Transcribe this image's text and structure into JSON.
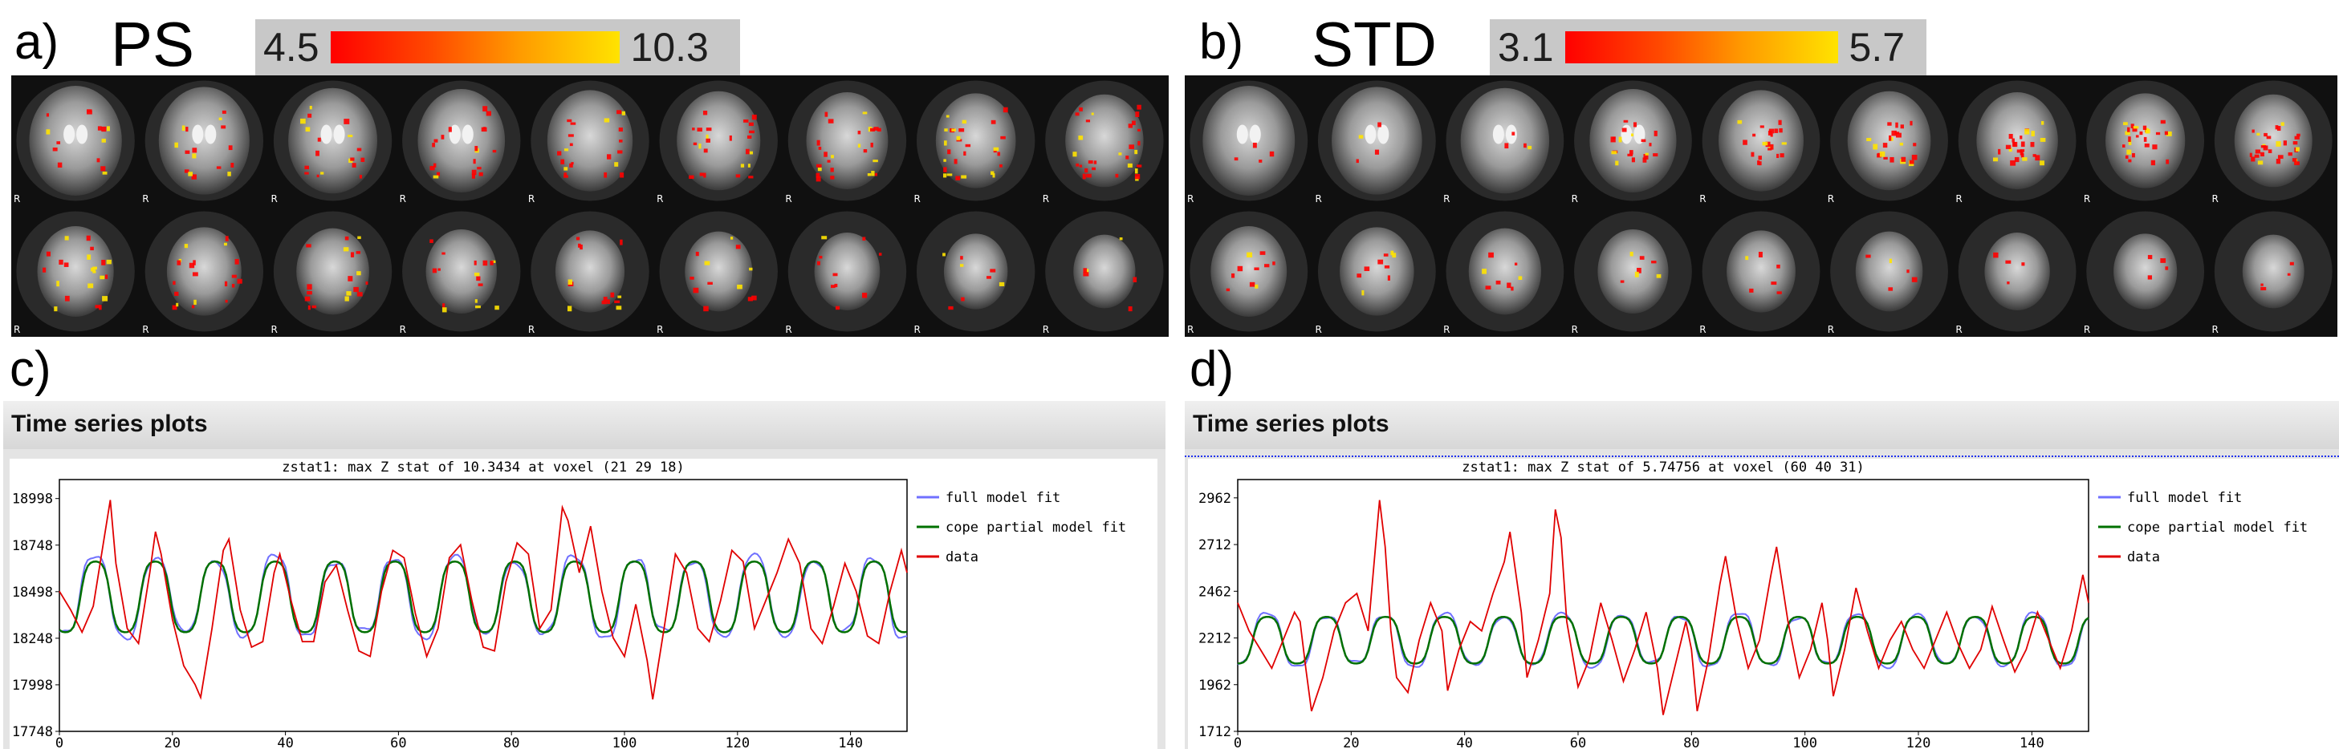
{
  "panels": [
    {
      "id": "a",
      "label": "a)",
      "map_name": "PS",
      "colorbar": {
        "min": "4.5",
        "max": "10.3"
      },
      "slice_marker": "R",
      "rows": 2,
      "cols": 9,
      "activation_pattern": "scattered-bilateral"
    },
    {
      "id": "b",
      "label": "b)",
      "map_name": "STD",
      "colorbar": {
        "min": "3.1",
        "max": "5.7"
      },
      "slice_marker": "R",
      "rows": 2,
      "cols": 9,
      "activation_pattern": "central-cluster"
    }
  ],
  "timeseries": [
    {
      "id": "c",
      "label": "c)",
      "header": "Time series plots",
      "legend": [
        "full model fit",
        "cope partial model fit",
        "data"
      ]
    },
    {
      "id": "d",
      "label": "d)",
      "header": "Time series plots",
      "legend": [
        "full model fit",
        "cope partial model fit",
        "data"
      ]
    }
  ],
  "colors": {
    "full_model_fit": "#7070ff",
    "cope_partial_fit": "#007000",
    "data": "#e00000",
    "activation_low": "#ff0000",
    "activation_high": "#ffe300"
  },
  "chart_data": [
    {
      "type": "line",
      "title": "zstat1: max Z stat of 10.3434 at voxel (21 29 18)",
      "xlabel": "",
      "ylabel": "",
      "xlim": [
        0,
        150
      ],
      "ylim": [
        17748,
        19100
      ],
      "xticks": [
        0,
        20,
        40,
        60,
        80,
        100,
        120,
        140
      ],
      "yticks": [
        17748,
        17998,
        18248,
        18498,
        18748,
        18998
      ],
      "model": {
        "mean": 18470,
        "amplitude": 190,
        "period": 10.6,
        "phase": -2.2
      },
      "full_fit_extra": 25,
      "series_data_points": [
        [
          0,
          18500
        ],
        [
          2,
          18400
        ],
        [
          4,
          18280
        ],
        [
          6,
          18420
        ],
        [
          8,
          18800
        ],
        [
          9,
          18990
        ],
        [
          10,
          18650
        ],
        [
          12,
          18300
        ],
        [
          14,
          18220
        ],
        [
          16,
          18600
        ],
        [
          17,
          18820
        ],
        [
          18,
          18700
        ],
        [
          20,
          18350
        ],
        [
          22,
          18100
        ],
        [
          24,
          18000
        ],
        [
          25,
          17930
        ],
        [
          27,
          18300
        ],
        [
          29,
          18720
        ],
        [
          30,
          18780
        ],
        [
          32,
          18400
        ],
        [
          34,
          18200
        ],
        [
          36,
          18230
        ],
        [
          38,
          18600
        ],
        [
          39,
          18700
        ],
        [
          41,
          18450
        ],
        [
          43,
          18230
        ],
        [
          45,
          18230
        ],
        [
          47,
          18550
        ],
        [
          49,
          18640
        ],
        [
          51,
          18400
        ],
        [
          53,
          18180
        ],
        [
          55,
          18150
        ],
        [
          57,
          18500
        ],
        [
          59,
          18720
        ],
        [
          61,
          18680
        ],
        [
          63,
          18380
        ],
        [
          65,
          18150
        ],
        [
          67,
          18300
        ],
        [
          69,
          18680
        ],
        [
          71,
          18750
        ],
        [
          73,
          18450
        ],
        [
          75,
          18200
        ],
        [
          77,
          18180
        ],
        [
          79,
          18550
        ],
        [
          81,
          18760
        ],
        [
          83,
          18700
        ],
        [
          85,
          18300
        ],
        [
          87,
          18400
        ],
        [
          89,
          18950
        ],
        [
          90,
          18880
        ],
        [
          92,
          18600
        ],
        [
          94,
          18850
        ],
        [
          96,
          18500
        ],
        [
          98,
          18250
        ],
        [
          100,
          18150
        ],
        [
          102,
          18430
        ],
        [
          104,
          18130
        ],
        [
          105,
          17920
        ],
        [
          107,
          18300
        ],
        [
          109,
          18700
        ],
        [
          111,
          18600
        ],
        [
          113,
          18300
        ],
        [
          115,
          18230
        ],
        [
          117,
          18450
        ],
        [
          119,
          18720
        ],
        [
          121,
          18660
        ],
        [
          123,
          18300
        ],
        [
          125,
          18450
        ],
        [
          127,
          18600
        ],
        [
          129,
          18780
        ],
        [
          131,
          18650
        ],
        [
          133,
          18300
        ],
        [
          135,
          18220
        ],
        [
          137,
          18420
        ],
        [
          139,
          18650
        ],
        [
          141,
          18500
        ],
        [
          143,
          18260
        ],
        [
          145,
          18220
        ],
        [
          147,
          18500
        ],
        [
          149,
          18720
        ],
        [
          150,
          18600
        ]
      ]
    },
    {
      "type": "line",
      "title": "zstat1: max Z stat of 5.74756 at voxel (60 40 31)",
      "xlabel": "",
      "ylabel": "",
      "xlim": [
        0,
        150
      ],
      "ylim": [
        1712,
        3060
      ],
      "xticks": [
        0,
        20,
        40,
        60,
        80,
        100,
        120,
        140
      ],
      "yticks": [
        1712,
        1962,
        2212,
        2462,
        2712,
        2962
      ],
      "model": {
        "mean": 2200,
        "amplitude": 125,
        "period": 10.4,
        "phase": -1.6
      },
      "full_fit_extra": 15,
      "series_data_points": [
        [
          0,
          2400
        ],
        [
          2,
          2250
        ],
        [
          4,
          2150
        ],
        [
          6,
          2050
        ],
        [
          8,
          2200
        ],
        [
          10,
          2350
        ],
        [
          11,
          2300
        ],
        [
          12,
          2050
        ],
        [
          13,
          1820
        ],
        [
          15,
          2000
        ],
        [
          17,
          2250
        ],
        [
          19,
          2400
        ],
        [
          21,
          2450
        ],
        [
          23,
          2250
        ],
        [
          24,
          2600
        ],
        [
          25,
          2950
        ],
        [
          26,
          2700
        ],
        [
          27,
          2250
        ],
        [
          28,
          2000
        ],
        [
          30,
          1920
        ],
        [
          32,
          2200
        ],
        [
          34,
          2400
        ],
        [
          36,
          2250
        ],
        [
          37,
          1930
        ],
        [
          39,
          2150
        ],
        [
          41,
          2300
        ],
        [
          43,
          2250
        ],
        [
          45,
          2450
        ],
        [
          47,
          2620
        ],
        [
          48,
          2780
        ],
        [
          50,
          2350
        ],
        [
          51,
          2000
        ],
        [
          53,
          2200
        ],
        [
          55,
          2450
        ],
        [
          56,
          2900
        ],
        [
          57,
          2750
        ],
        [
          58,
          2300
        ],
        [
          60,
          1950
        ],
        [
          62,
          2100
        ],
        [
          64,
          2400
        ],
        [
          66,
          2200
        ],
        [
          68,
          1980
        ],
        [
          70,
          2150
        ],
        [
          72,
          2350
        ],
        [
          74,
          2050
        ],
        [
          75,
          1800
        ],
        [
          77,
          2050
        ],
        [
          79,
          2300
        ],
        [
          80,
          2150
        ],
        [
          81,
          1820
        ],
        [
          83,
          2100
        ],
        [
          85,
          2500
        ],
        [
          86,
          2650
        ],
        [
          88,
          2300
        ],
        [
          90,
          2050
        ],
        [
          92,
          2200
        ],
        [
          94,
          2550
        ],
        [
          95,
          2700
        ],
        [
          97,
          2300
        ],
        [
          99,
          2000
        ],
        [
          101,
          2150
        ],
        [
          103,
          2400
        ],
        [
          104,
          2200
        ],
        [
          105,
          1900
        ],
        [
          107,
          2150
        ],
        [
          109,
          2480
        ],
        [
          111,
          2250
        ],
        [
          113,
          2050
        ],
        [
          115,
          2200
        ],
        [
          117,
          2300
        ],
        [
          119,
          2150
        ],
        [
          121,
          2050
        ],
        [
          123,
          2200
        ],
        [
          125,
          2350
        ],
        [
          127,
          2180
        ],
        [
          129,
          2050
        ],
        [
          131,
          2150
        ],
        [
          133,
          2380
        ],
        [
          135,
          2200
        ],
        [
          137,
          2030
        ],
        [
          139,
          2150
        ],
        [
          141,
          2350
        ],
        [
          143,
          2200
        ],
        [
          145,
          2050
        ],
        [
          147,
          2250
        ],
        [
          149,
          2550
        ],
        [
          150,
          2400
        ]
      ]
    }
  ]
}
